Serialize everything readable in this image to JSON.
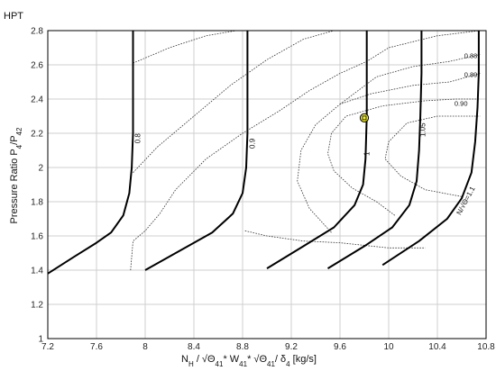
{
  "chart_data": {
    "type": "line",
    "title": "HPT",
    "xlabel": {
      "main": "N",
      "parts": [
        {
          "t": "N"
        },
        {
          "t": "H",
          "sub": true
        },
        {
          "t": " / √Θ"
        },
        {
          "t": "41",
          "sub": true
        },
        {
          "t": "* W"
        },
        {
          "t": "41",
          "sub": true
        },
        {
          "t": "* √Θ"
        },
        {
          "t": "41",
          "sub": true
        },
        {
          "t": "/ δ"
        },
        {
          "t": "4",
          "sub": true
        },
        {
          "t": " [kg/s]"
        }
      ]
    },
    "ylabel": {
      "main": "Pressure Ratio P",
      "parts": [
        {
          "t": "Pressure Ratio P"
        },
        {
          "t": "4",
          "sub": true
        },
        {
          "t": "/P"
        },
        {
          "t": "42",
          "sub": true
        }
      ]
    },
    "xlim": [
      7.2,
      10.8
    ],
    "ylim": [
      1.0,
      2.8
    ],
    "xticks": [
      7.2,
      7.6,
      8,
      8.4,
      8.8,
      9.2,
      9.6,
      10,
      10.4,
      10.8
    ],
    "yticks": [
      1,
      1.2,
      1.4,
      1.6,
      1.8,
      2,
      2.2,
      2.4,
      2.6,
      2.8
    ],
    "xtick_labels": [
      "7.2",
      "7.6",
      "8",
      "8.4",
      "8.8",
      "9.2",
      "9.6",
      "10",
      "10.4",
      "10.8"
    ],
    "ytick_labels": [
      "1",
      "1.2",
      "1.4",
      "1.6",
      "1.8",
      "2",
      "2.2",
      "2.4",
      "2.6",
      "2.8"
    ],
    "grid": true,
    "speed_lines": [
      {
        "label": "0.8",
        "label_at": [
          7.96,
          2.17
        ],
        "points": [
          [
            7.2,
            1.38
          ],
          [
            7.42,
            1.48
          ],
          [
            7.6,
            1.56
          ],
          [
            7.72,
            1.62
          ],
          [
            7.82,
            1.72
          ],
          [
            7.87,
            1.85
          ],
          [
            7.89,
            2.0
          ],
          [
            7.9,
            2.2
          ],
          [
            7.9,
            2.5
          ],
          [
            7.9,
            2.8
          ]
        ]
      },
      {
        "label": "0.9",
        "label_at": [
          8.9,
          2.14
        ],
        "points": [
          [
            8.0,
            1.4
          ],
          [
            8.3,
            1.52
          ],
          [
            8.55,
            1.62
          ],
          [
            8.72,
            1.73
          ],
          [
            8.8,
            1.85
          ],
          [
            8.83,
            2.0
          ],
          [
            8.84,
            2.2
          ],
          [
            8.84,
            2.5
          ],
          [
            8.84,
            2.8
          ]
        ]
      },
      {
        "label": "1",
        "label_at": [
          9.84,
          2.08
        ],
        "points": [
          [
            9.0,
            1.41
          ],
          [
            9.3,
            1.54
          ],
          [
            9.55,
            1.65
          ],
          [
            9.72,
            1.78
          ],
          [
            9.79,
            1.9
          ],
          [
            9.81,
            2.05
          ],
          [
            9.82,
            2.3
          ],
          [
            9.82,
            2.55
          ],
          [
            9.82,
            2.8
          ]
        ]
      },
      {
        "label": "1.05",
        "label_at": [
          10.3,
          2.22
        ],
        "points": [
          [
            9.5,
            1.41
          ],
          [
            9.8,
            1.54
          ],
          [
            10.03,
            1.65
          ],
          [
            10.17,
            1.78
          ],
          [
            10.23,
            1.92
          ],
          [
            10.25,
            2.1
          ],
          [
            10.26,
            2.3
          ],
          [
            10.27,
            2.55
          ],
          [
            10.27,
            2.8
          ]
        ]
      },
      {
        "label": "N/√Θ=1.1",
        "label_at": [
          10.65,
          1.8
        ],
        "label_rotate": -62,
        "points": [
          [
            9.95,
            1.43
          ],
          [
            10.25,
            1.57
          ],
          [
            10.48,
            1.7
          ],
          [
            10.6,
            1.82
          ],
          [
            10.68,
            1.97
          ],
          [
            10.71,
            2.15
          ],
          [
            10.73,
            2.35
          ],
          [
            10.74,
            2.55
          ],
          [
            10.74,
            2.8
          ]
        ]
      }
    ],
    "efficiency_contours": [
      {
        "label": "0.88",
        "label_at": [
          10.62,
          2.64
        ],
        "points": [
          [
            9.6,
            2.37
          ],
          [
            9.9,
            2.53
          ],
          [
            10.2,
            2.59
          ],
          [
            10.5,
            2.62
          ],
          [
            10.75,
            2.66
          ]
        ]
      },
      {
        "label": "0.89",
        "label_at": [
          10.62,
          2.53
        ],
        "points": [
          [
            9.53,
            1.62
          ],
          [
            9.35,
            1.76
          ],
          [
            9.25,
            1.92
          ],
          [
            9.28,
            2.1
          ],
          [
            9.4,
            2.25
          ],
          [
            9.6,
            2.37
          ],
          [
            9.85,
            2.43
          ],
          [
            10.2,
            2.48
          ],
          [
            10.5,
            2.5
          ],
          [
            10.75,
            2.55
          ]
        ]
      },
      {
        "label": "0.90",
        "label_at": [
          10.54,
          2.36
        ],
        "points": [
          [
            10.05,
            1.72
          ],
          [
            9.9,
            1.8
          ],
          [
            9.7,
            1.88
          ],
          [
            9.55,
            1.98
          ],
          [
            9.5,
            2.08
          ],
          [
            9.53,
            2.2
          ],
          [
            9.65,
            2.3
          ],
          [
            9.95,
            2.36
          ],
          [
            10.3,
            2.39
          ],
          [
            10.55,
            2.4
          ],
          [
            10.75,
            2.4
          ]
        ]
      },
      {
        "label": "",
        "label_at": null,
        "points": [
          [
            10.6,
            1.83
          ],
          [
            10.3,
            1.87
          ],
          [
            10.1,
            1.95
          ],
          [
            9.97,
            2.05
          ],
          [
            10.0,
            2.15
          ],
          [
            10.15,
            2.26
          ],
          [
            10.4,
            2.3
          ],
          [
            10.6,
            2.3
          ],
          [
            10.75,
            2.3
          ]
        ]
      },
      {
        "label": "",
        "label_at": null,
        "points": [
          [
            7.88,
            1.4
          ],
          [
            7.9,
            1.57
          ],
          [
            8.0,
            1.63
          ],
          [
            8.12,
            1.73
          ],
          [
            8.25,
            1.87
          ],
          [
            8.5,
            2.05
          ],
          [
            8.8,
            2.2
          ],
          [
            9.1,
            2.33
          ],
          [
            9.35,
            2.45
          ],
          [
            9.6,
            2.55
          ],
          [
            9.82,
            2.62
          ],
          [
            10.0,
            2.7
          ],
          [
            10.4,
            2.77
          ],
          [
            10.75,
            2.8
          ]
        ]
      },
      {
        "label": "",
        "label_at": null,
        "points": [
          [
            7.9,
            2.61
          ],
          [
            8.2,
            2.7
          ],
          [
            8.5,
            2.77
          ],
          [
            8.75,
            2.82
          ]
        ]
      },
      {
        "label": "",
        "label_at": null,
        "points": [
          [
            7.9,
            1.97
          ],
          [
            8.1,
            2.12
          ],
          [
            8.4,
            2.3
          ],
          [
            8.7,
            2.48
          ],
          [
            9.0,
            2.63
          ],
          [
            9.3,
            2.75
          ],
          [
            9.55,
            2.82
          ]
        ]
      },
      {
        "label": "",
        "label_at": null,
        "points": [
          [
            8.82,
            1.63
          ],
          [
            9.0,
            1.6
          ],
          [
            9.3,
            1.57
          ],
          [
            9.6,
            1.56
          ],
          [
            10.0,
            1.53
          ],
          [
            10.3,
            1.53
          ]
        ]
      }
    ],
    "operating_point": {
      "x": 9.8,
      "y": 2.29
    }
  }
}
